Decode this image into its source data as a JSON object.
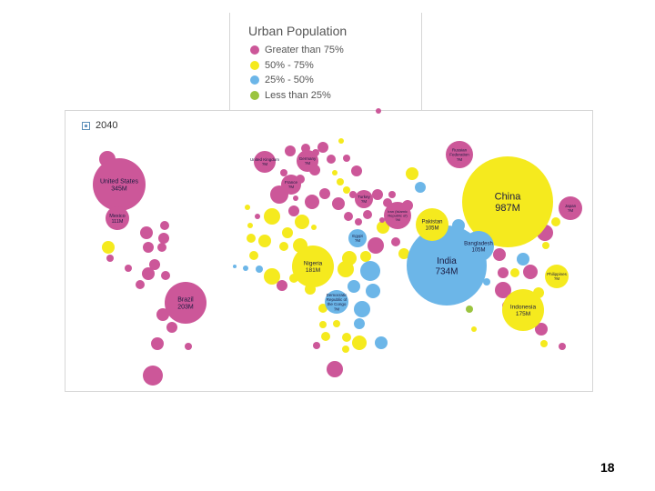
{
  "legend": {
    "title": "Urban Population",
    "items": [
      {
        "label": "Greater than 75%",
        "color": "#cc5799"
      },
      {
        "label": "50% - 75%",
        "color": "#f5ea1e"
      },
      {
        "label": "25% - 50%",
        "color": "#6cb6e8"
      },
      {
        "label": "Less than 25%",
        "color": "#9bc43f"
      }
    ]
  },
  "map": {
    "year": "2040",
    "zoom_icon": "zoom-icon"
  },
  "page_number": "18",
  "chart_data": {
    "type": "bubble-map",
    "title": "Urban Population",
    "year": "2040",
    "categories": [
      "Greater than 75%",
      "50% - 75%",
      "25% - 50%",
      "Less than 25%"
    ],
    "labeled_bubbles": [
      {
        "country": "China",
        "value": "987M",
        "category": 1
      },
      {
        "country": "India",
        "value": "734M",
        "category": 2
      },
      {
        "country": "United States",
        "value": "345M",
        "category": 0
      },
      {
        "country": "Brazil",
        "value": "203M",
        "category": 0
      },
      {
        "country": "Indonesia",
        "value": "175M",
        "category": 1
      },
      {
        "country": "Nigeria",
        "value": "181M",
        "category": 1
      },
      {
        "country": "Pakistan",
        "value": "105M",
        "category": 1
      },
      {
        "country": "Bangladesh",
        "value": "105M",
        "category": 2
      },
      {
        "country": "Mexico",
        "value": "111M",
        "category": 0
      },
      {
        "country": "Russian Federation",
        "value": "?M",
        "category": 0
      },
      {
        "country": "Japan",
        "value": "?M",
        "category": 0
      },
      {
        "country": "Philippines",
        "value": "?M",
        "category": 1
      },
      {
        "country": "Iran (Islamic Republic of)",
        "value": "?M",
        "category": 0
      },
      {
        "country": "Egypt",
        "value": "?M",
        "category": 2
      },
      {
        "country": "Turkey",
        "value": "?M",
        "category": 0
      },
      {
        "country": "United Kingdom",
        "value": "?M",
        "category": 0
      },
      {
        "country": "Germany",
        "value": "?M",
        "category": 0
      },
      {
        "country": "France",
        "value": "?M",
        "category": 0
      },
      {
        "country": "Democratic Republic of the Congo",
        "value": "?M",
        "category": 2
      }
    ]
  }
}
